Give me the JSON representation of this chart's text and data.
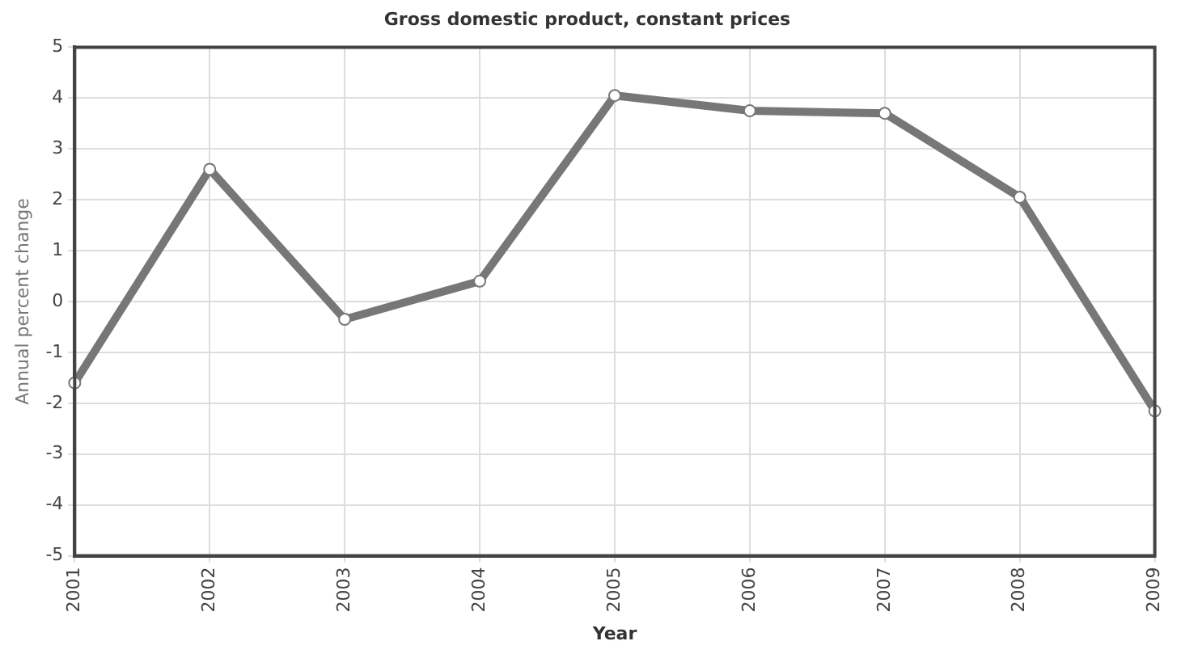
{
  "chart_data": {
    "type": "line",
    "title": "Gross domestic product, constant prices",
    "xlabel": "Year",
    "ylabel": "Annual percent change",
    "categories": [
      "2001",
      "2002",
      "2003",
      "2004",
      "2005",
      "2006",
      "2007",
      "2008",
      "2009"
    ],
    "series": [
      {
        "color": "#777777",
        "values": [
          -1.6,
          2.6,
          -0.35,
          0.4,
          4.05,
          3.75,
          3.7,
          2.05,
          -2.15
        ]
      }
    ],
    "ylim": [
      -5,
      5
    ],
    "yticks": [
      -5,
      -4,
      -3,
      -2,
      -1,
      0,
      1,
      2,
      3,
      4,
      5
    ],
    "grid": true,
    "legend": false,
    "marker": "circle",
    "line_style": "solid"
  }
}
